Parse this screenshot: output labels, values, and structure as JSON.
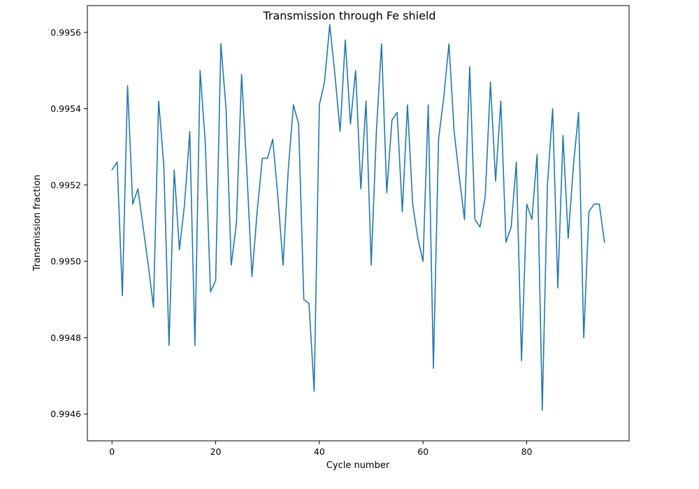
{
  "chart_data": {
    "type": "line",
    "title": "Transmission through Fe shield",
    "xlabel": "Cycle number",
    "ylabel": "Transmission fraction",
    "xlim": [
      -4.75,
      99.75
    ],
    "ylim": [
      0.99453,
      0.99567
    ],
    "xticks": [
      0,
      20,
      40,
      60,
      80
    ],
    "xtick_labels": [
      "0",
      "20",
      "40",
      "60",
      "80"
    ],
    "yticks": [
      0.9946,
      0.9948,
      0.995,
      0.9952,
      0.9954,
      0.9956
    ],
    "ytick_labels": [
      "0.9946",
      "0.9948",
      "0.9950",
      "0.9952",
      "0.9954",
      "0.9956"
    ],
    "grid": false,
    "series": [
      {
        "color": "#1f77b4",
        "x": [
          0,
          1,
          2,
          3,
          4,
          5,
          6,
          7,
          8,
          9,
          10,
          11,
          12,
          13,
          14,
          15,
          16,
          17,
          18,
          19,
          20,
          21,
          22,
          23,
          24,
          25,
          26,
          27,
          28,
          29,
          30,
          31,
          32,
          33,
          34,
          35,
          36,
          37,
          38,
          39,
          40,
          41,
          42,
          43,
          44,
          45,
          46,
          47,
          48,
          49,
          50,
          51,
          52,
          53,
          54,
          55,
          56,
          57,
          58,
          59,
          60,
          61,
          62,
          63,
          64,
          65,
          66,
          67,
          68,
          69,
          70,
          71,
          72,
          73,
          74,
          75,
          76,
          77,
          78,
          79,
          80,
          81,
          82,
          83,
          84,
          85,
          86,
          87,
          88,
          89,
          90,
          91,
          92,
          93,
          94,
          95
        ],
        "values": [
          0.99524,
          0.99526,
          0.99491,
          0.99546,
          0.99515,
          0.99519,
          0.99509,
          0.99499,
          0.99488,
          0.99542,
          0.99525,
          0.99478,
          0.99524,
          0.99503,
          0.99515,
          0.99534,
          0.99478,
          0.9955,
          0.99531,
          0.99492,
          0.99495,
          0.99557,
          0.9954,
          0.99499,
          0.9951,
          0.99549,
          0.99524,
          0.99496,
          0.99513,
          0.99527,
          0.99527,
          0.99532,
          0.99517,
          0.99499,
          0.99524,
          0.99541,
          0.99536,
          0.9949,
          0.99489,
          0.99466,
          0.99541,
          0.99547,
          0.99562,
          0.99549,
          0.99534,
          0.99558,
          0.99536,
          0.9955,
          0.99519,
          0.99542,
          0.99499,
          0.99534,
          0.99557,
          0.99518,
          0.99537,
          0.99539,
          0.99513,
          0.99541,
          0.99515,
          0.99506,
          0.995,
          0.99541,
          0.99472,
          0.99532,
          0.99543,
          0.99557,
          0.99534,
          0.99522,
          0.99511,
          0.99551,
          0.99511,
          0.99509,
          0.99517,
          0.99547,
          0.99521,
          0.99542,
          0.99505,
          0.99509,
          0.99526,
          0.99474,
          0.99515,
          0.99511,
          0.99528,
          0.99461,
          0.9952,
          0.9954,
          0.99493,
          0.99533,
          0.99506,
          0.99525,
          0.99539,
          0.9948,
          0.99513,
          0.99515,
          0.99515,
          0.99505
        ]
      }
    ]
  }
}
